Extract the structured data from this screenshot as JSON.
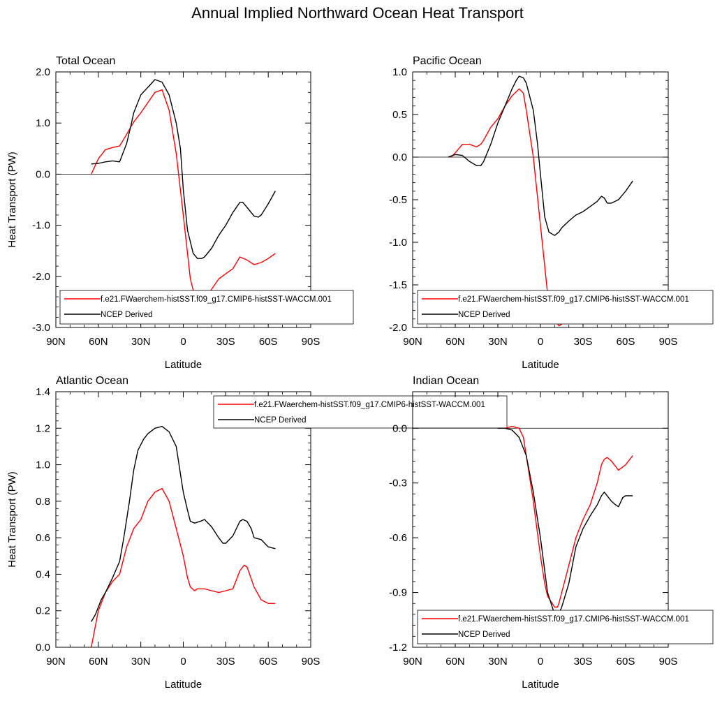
{
  "figure": {
    "title": "Annual Implied Northward Ocean Heat Transport"
  },
  "colors": {
    "model": "#ff0000",
    "obs": "#000000",
    "zero_line": "#000000"
  },
  "chart_data": [
    {
      "type": "line",
      "title": "Total Ocean",
      "xlabel": "Latitude",
      "ylabel": "Heat Transport (PW)",
      "xlim": [
        90,
        -90
      ],
      "ylim": [
        -3.0,
        2.0
      ],
      "x_ticks": [
        90,
        60,
        30,
        0,
        -30,
        -60,
        -90
      ],
      "x_tick_labels": [
        "90N",
        "60N",
        "30N",
        "0",
        "30S",
        "60S",
        "90S"
      ],
      "y_ticks": [
        -3.0,
        -2.0,
        -1.0,
        0.0,
        1.0,
        2.0
      ],
      "y_tick_labels": [
        "-3.0",
        "-2.0",
        "-1.0",
        "0.0",
        "1.0",
        "2.0"
      ],
      "zero_line": true,
      "legend_position": "bottom-right",
      "series": [
        {
          "name": "f.e21.FWaerchem-histSST.f09_g17.CMIP6-histSST-WACCM.001",
          "color": "#ff0000",
          "x": [
            65,
            60,
            55,
            50,
            45,
            40,
            35,
            30,
            25,
            20,
            15,
            10,
            5,
            0,
            -5,
            -10,
            -15,
            -20,
            -25,
            -30,
            -35,
            -40,
            -45,
            -50,
            -55,
            -60,
            -65
          ],
          "y": [
            0.0,
            0.3,
            0.48,
            0.52,
            0.55,
            0.78,
            1.02,
            1.2,
            1.4,
            1.6,
            1.65,
            1.25,
            0.4,
            -0.8,
            -2.05,
            -2.6,
            -2.5,
            -2.25,
            -2.05,
            -1.95,
            -1.85,
            -1.62,
            -1.68,
            -1.77,
            -1.73,
            -1.65,
            -1.55
          ]
        },
        {
          "name": "NCEP Derived",
          "color": "#000000",
          "x": [
            65,
            60,
            55,
            50,
            45,
            40,
            37,
            35,
            30,
            25,
            20,
            15,
            10,
            5,
            2,
            0,
            -3,
            -7,
            -10,
            -13,
            -15,
            -20,
            -25,
            -30,
            -35,
            -40,
            -42,
            -45,
            -50,
            -53,
            -55,
            -60,
            -65
          ],
          "y": [
            0.2,
            0.21,
            0.24,
            0.26,
            0.24,
            0.6,
            0.95,
            1.2,
            1.55,
            1.7,
            1.85,
            1.8,
            1.55,
            1.0,
            0.5,
            -0.3,
            -1.1,
            -1.55,
            -1.65,
            -1.65,
            -1.62,
            -1.45,
            -1.2,
            -1.0,
            -0.75,
            -0.55,
            -0.55,
            -0.65,
            -0.82,
            -0.84,
            -0.8,
            -0.58,
            -0.33
          ]
        }
      ]
    },
    {
      "type": "line",
      "title": "Pacific Ocean",
      "xlabel": "Latitude",
      "ylabel": "",
      "xlim": [
        90,
        -90
      ],
      "ylim": [
        -2.0,
        1.0
      ],
      "x_ticks": [
        90,
        60,
        30,
        0,
        -30,
        -60,
        -90
      ],
      "x_tick_labels": [
        "90N",
        "60N",
        "30N",
        "0",
        "30S",
        "60S",
        "90S"
      ],
      "y_ticks": [
        -2.0,
        -1.5,
        -1.0,
        -0.5,
        0.0,
        0.5,
        1.0
      ],
      "y_tick_labels": [
        "-2.0",
        "-1.5",
        "-1.0",
        "-0.5",
        "0.0",
        "0.5",
        "1.0"
      ],
      "zero_line": true,
      "legend_position": "bottom-right",
      "series": [
        {
          "name": "f.e21.FWaerchem-histSST.f09_g17.CMIP6-histSST-WACCM.001",
          "color": "#ff0000",
          "x": [
            63,
            60,
            55,
            50,
            45,
            42,
            40,
            35,
            30,
            25,
            20,
            15,
            12,
            10,
            5,
            0,
            -5,
            -10,
            -13,
            -15,
            -20,
            -25,
            -30,
            -35,
            -40,
            -45,
            -47,
            -50,
            -55,
            -60,
            -65
          ],
          "y": [
            0.0,
            0.05,
            0.15,
            0.15,
            0.12,
            0.15,
            0.2,
            0.35,
            0.45,
            0.6,
            0.72,
            0.8,
            0.75,
            0.55,
            0.0,
            -0.8,
            -1.6,
            -1.9,
            -1.98,
            -1.96,
            -1.88,
            -1.82,
            -1.8,
            -1.83,
            -1.86,
            -1.88,
            -1.87,
            -1.83,
            -1.78,
            -1.72,
            -1.68
          ]
        },
        {
          "name": "NCEP Derived",
          "color": "#000000",
          "x": [
            65,
            60,
            55,
            50,
            45,
            42,
            40,
            35,
            30,
            25,
            20,
            17,
            15,
            12,
            10,
            5,
            2,
            0,
            -3,
            -6,
            -10,
            -13,
            -15,
            -20,
            -25,
            -30,
            -35,
            -40,
            -43,
            -45,
            -47,
            -50,
            -55,
            -60,
            -65
          ],
          "y": [
            0.0,
            0.03,
            0.02,
            -0.05,
            -0.1,
            -0.1,
            -0.05,
            0.15,
            0.4,
            0.6,
            0.8,
            0.9,
            0.95,
            0.93,
            0.87,
            0.55,
            0.15,
            -0.2,
            -0.7,
            -0.88,
            -0.92,
            -0.88,
            -0.83,
            -0.75,
            -0.68,
            -0.64,
            -0.58,
            -0.52,
            -0.46,
            -0.48,
            -0.54,
            -0.54,
            -0.5,
            -0.4,
            -0.28
          ]
        }
      ]
    },
    {
      "type": "line",
      "title": "Atlantic Ocean",
      "xlabel": "Latitude",
      "ylabel": "Heat Transport (PW)",
      "xlim": [
        90,
        -90
      ],
      "ylim": [
        0.0,
        1.4
      ],
      "x_ticks": [
        90,
        60,
        30,
        0,
        -30,
        -60,
        -90
      ],
      "x_tick_labels": [
        "90N",
        "60N",
        "30N",
        "0",
        "30S",
        "60S",
        "90S"
      ],
      "y_ticks": [
        0.0,
        0.2,
        0.4,
        0.6,
        0.8,
        1.0,
        1.2,
        1.4
      ],
      "y_tick_labels": [
        "0.0",
        "0.2",
        "0.4",
        "0.6",
        "0.8",
        "1.0",
        "1.2",
        "1.4"
      ],
      "zero_line": false,
      "legend_position": "top-right",
      "series": [
        {
          "name": "f.e21.FWaerchem-histSST.f09_g17.CMIP6-histSST-WACCM.001",
          "color": "#ff0000",
          "x": [
            65,
            60,
            55,
            50,
            45,
            40,
            35,
            30,
            25,
            20,
            15,
            10,
            5,
            0,
            -3,
            -5,
            -8,
            -10,
            -15,
            -20,
            -25,
            -30,
            -35,
            -40,
            -43,
            -45,
            -50,
            -55,
            -60,
            -65
          ],
          "y": [
            0.0,
            0.2,
            0.3,
            0.36,
            0.4,
            0.55,
            0.65,
            0.7,
            0.8,
            0.85,
            0.87,
            0.8,
            0.65,
            0.5,
            0.38,
            0.33,
            0.31,
            0.32,
            0.32,
            0.31,
            0.3,
            0.31,
            0.32,
            0.42,
            0.45,
            0.44,
            0.33,
            0.26,
            0.24,
            0.24
          ]
        },
        {
          "name": "NCEP Derived",
          "color": "#000000",
          "x": [
            65,
            62,
            58,
            55,
            50,
            45,
            42,
            38,
            35,
            32,
            28,
            25,
            20,
            15,
            10,
            5,
            2,
            0,
            -3,
            -5,
            -8,
            -12,
            -15,
            -20,
            -25,
            -28,
            -30,
            -35,
            -40,
            -42,
            -45,
            -48,
            -50,
            -55,
            -60,
            -65
          ],
          "y": [
            0.14,
            0.18,
            0.26,
            0.3,
            0.38,
            0.47,
            0.6,
            0.8,
            0.97,
            1.08,
            1.14,
            1.17,
            1.2,
            1.21,
            1.18,
            1.1,
            0.95,
            0.85,
            0.75,
            0.69,
            0.68,
            0.69,
            0.7,
            0.66,
            0.6,
            0.57,
            0.57,
            0.61,
            0.69,
            0.7,
            0.69,
            0.65,
            0.6,
            0.59,
            0.55,
            0.54
          ]
        }
      ]
    },
    {
      "type": "line",
      "title": "Indian Ocean",
      "xlabel": "Latitude",
      "ylabel": "",
      "xlim": [
        90,
        -90
      ],
      "ylim": [
        -1.2,
        0.2
      ],
      "x_ticks": [
        90,
        60,
        30,
        0,
        -30,
        -60,
        -90
      ],
      "x_tick_labels": [
        "90N",
        "60N",
        "30N",
        "0",
        "30S",
        "60S",
        "90S"
      ],
      "y_ticks": [
        -1.2,
        -0.9,
        -0.6,
        -0.3,
        0.0
      ],
      "y_tick_labels": [
        "-1.2",
        "-0.9",
        "-0.6",
        "-0.3",
        "0.0"
      ],
      "zero_line": true,
      "legend_position": "bottom-right",
      "series": [
        {
          "name": "f.e21.FWaerchem-histSST.f09_g17.CMIP6-histSST-WACCM.001",
          "color": "#ff0000",
          "x": [
            30,
            25,
            20,
            15,
            12,
            10,
            5,
            0,
            -3,
            -5,
            -10,
            -12,
            -13,
            -15,
            -20,
            -25,
            -30,
            -35,
            -40,
            -43,
            -45,
            -47,
            -50,
            -55,
            -60,
            -65
          ],
          "y": [
            0.0,
            0.0,
            0.01,
            0.0,
            -0.05,
            -0.15,
            -0.4,
            -0.7,
            -0.85,
            -0.92,
            -0.98,
            -0.98,
            -0.96,
            -0.9,
            -0.75,
            -0.6,
            -0.5,
            -0.42,
            -0.3,
            -0.2,
            -0.17,
            -0.16,
            -0.18,
            -0.23,
            -0.2,
            -0.15
          ]
        },
        {
          "name": "NCEP Derived",
          "color": "#000000",
          "x": [
            30,
            25,
            20,
            15,
            10,
            5,
            0,
            -5,
            -10,
            -12,
            -15,
            -20,
            -25,
            -30,
            -35,
            -40,
            -43,
            -45,
            -50,
            -53,
            -55,
            -58,
            -60,
            -65
          ],
          "y": [
            0.0,
            0.0,
            -0.01,
            -0.05,
            -0.15,
            -0.35,
            -0.6,
            -0.9,
            -1.02,
            -1.03,
            -0.98,
            -0.85,
            -0.65,
            -0.55,
            -0.48,
            -0.42,
            -0.37,
            -0.35,
            -0.4,
            -0.42,
            -0.43,
            -0.38,
            -0.37,
            -0.37
          ]
        }
      ]
    }
  ]
}
